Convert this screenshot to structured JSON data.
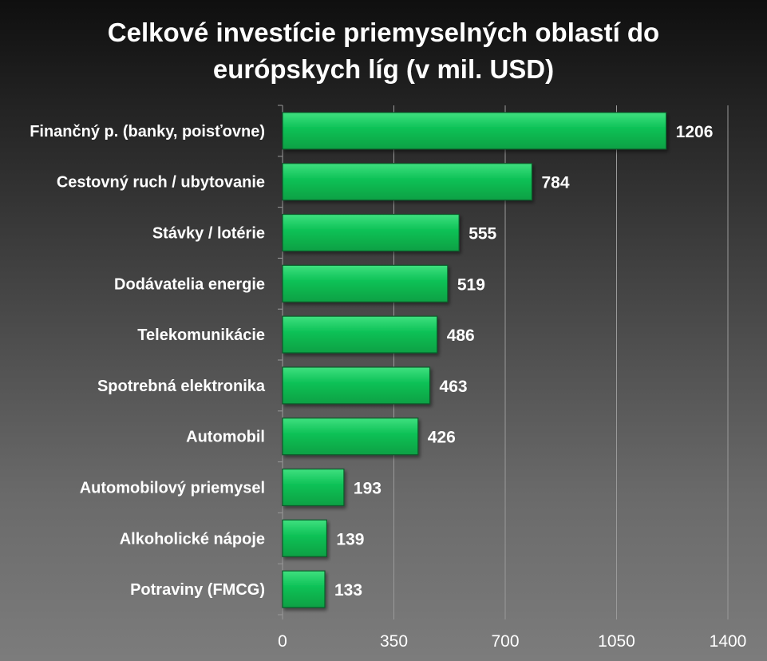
{
  "chart_data": {
    "type": "bar",
    "orientation": "horizontal",
    "title": "Celkové investície priemyselných oblastí do\neurópskych líg (v mil. USD)",
    "categories": [
      "Finančný p. (banky, poisťovne)",
      "Cestovný ruch / ubytovanie",
      "Stávky / lotérie",
      "Dodávatelia energie",
      "Telekomunikácie",
      "Spotrebná elektronika",
      "Automobil",
      "Automobilový priemysel",
      "Alkoholické nápoje",
      "Potraviny (FMCG)"
    ],
    "values": [
      1206,
      784,
      555,
      519,
      486,
      463,
      426,
      193,
      139,
      133
    ],
    "data_labels": [
      "1206",
      "784",
      "555",
      "519",
      "486",
      "463",
      "426",
      "193",
      "139",
      "133"
    ],
    "xlim": [
      0,
      1400
    ],
    "xticks": [
      0,
      350,
      700,
      1050,
      1400
    ],
    "xtick_labels": [
      "0",
      "350",
      "700",
      "1050",
      "1400"
    ],
    "xlabel": "",
    "ylabel": "",
    "grid": "vertical",
    "legend": "none",
    "colors": {
      "bar": "#0bbd55",
      "bar_edge": "#0a5a2a",
      "text": "#ffffff",
      "grid": "#9a9a9a"
    }
  }
}
